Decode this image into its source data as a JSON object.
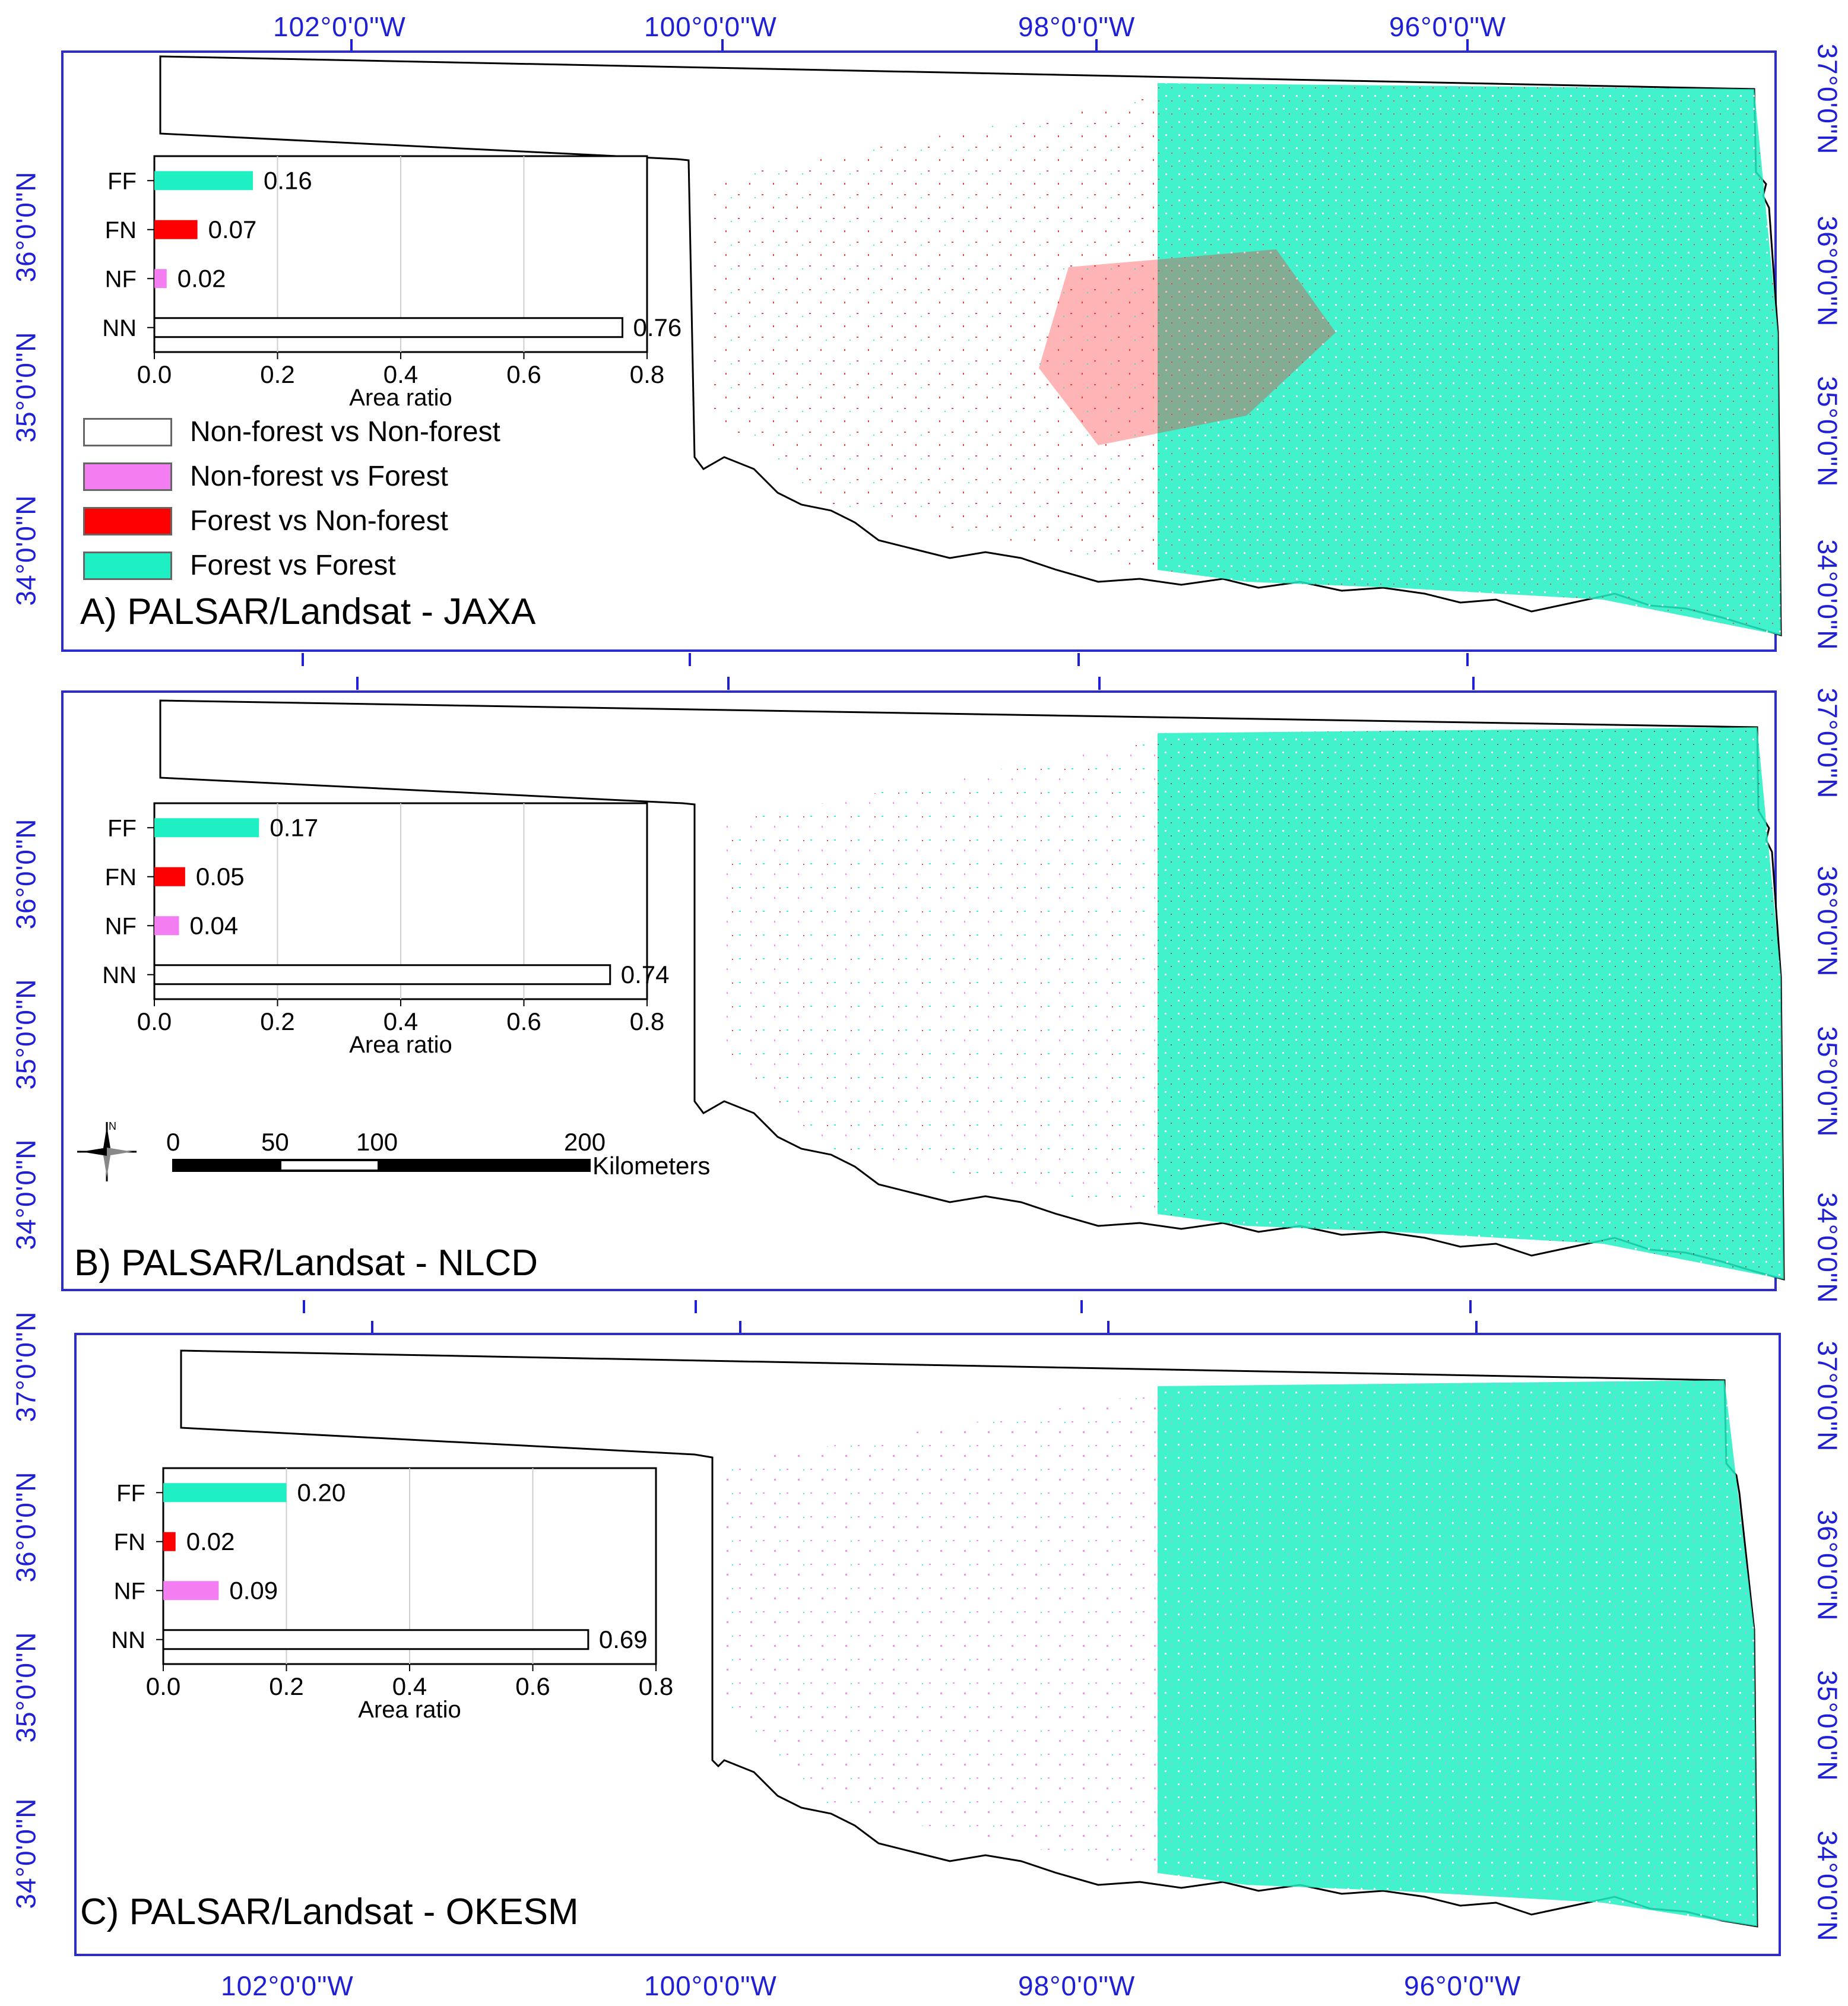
{
  "coords": {
    "top_longitudes": [
      "102°0'0\"W",
      "100°0'0\"W",
      "98°0'0\"W",
      "96°0'0\"W"
    ],
    "bottom_longitudes": [
      "102°0'0\"W",
      "100°0'0\"W",
      "98°0'0\"W",
      "96°0'0\"W"
    ],
    "left_latitudes_a": [
      "36°0'0\"N",
      "35°0'0\"N",
      "34°0'0\"N"
    ],
    "right_latitudes_a": [
      "37°0'0\"N",
      "36°0'0\"N",
      "35°0'0\"N",
      "34°0'0\"N"
    ],
    "left_latitudes_b": [
      "36°0'0\"N",
      "35°0'0\"N",
      "34°0'0\"N"
    ],
    "right_latitudes_b": [
      "37°0'0\"N",
      "36°0'0\"N",
      "35°0'0\"N",
      "34°0'0\"N"
    ],
    "left_latitudes_c": [
      "37°0'0\"N",
      "36°0'0\"N",
      "35°0'0\"N",
      "34°0'0\"N"
    ],
    "right_latitudes_c": [
      "37°0'0\"N",
      "36°0'0\"N",
      "35°0'0\"N",
      "34°0'0\"N"
    ]
  },
  "panels": [
    {
      "title": "A) PALSAR/Landsat - JAXA",
      "chart": {
        "categories": [
          "FF",
          "FN",
          "NF",
          "NN"
        ],
        "values": [
          0.16,
          0.07,
          0.02,
          0.76
        ],
        "labels": [
          "0.16",
          "0.07",
          "0.02",
          "0.76"
        ],
        "xticks": [
          "0.0",
          "0.2",
          "0.4",
          "0.6",
          "0.8"
        ],
        "xlabel": "Area ratio"
      }
    },
    {
      "title": "B) PALSAR/Landsat - NLCD",
      "chart": {
        "categories": [
          "FF",
          "FN",
          "NF",
          "NN"
        ],
        "values": [
          0.17,
          0.05,
          0.04,
          0.74
        ],
        "labels": [
          "0.17",
          "0.05",
          "0.04",
          "0.74"
        ],
        "xticks": [
          "0.0",
          "0.2",
          "0.4",
          "0.6",
          "0.8"
        ],
        "xlabel": "Area ratio"
      }
    },
    {
      "title": "C) PALSAR/Landsat - OKESM",
      "chart": {
        "categories": [
          "FF",
          "FN",
          "NF",
          "NN"
        ],
        "values": [
          0.2,
          0.02,
          0.09,
          0.69
        ],
        "labels": [
          "0.20",
          "0.02",
          "0.09",
          "0.69"
        ],
        "xticks": [
          "0.0",
          "0.2",
          "0.4",
          "0.6",
          "0.8"
        ],
        "xlabel": "Area ratio"
      }
    }
  ],
  "legend": [
    {
      "label": "Non-forest vs Non-forest",
      "color": "#ffffff"
    },
    {
      "label": "Non-forest vs Forest",
      "color": "#f27ef2"
    },
    {
      "label": "Forest vs Non-forest",
      "color": "#ff0000"
    },
    {
      "label": "Forest vs Forest",
      "color": "#1ff0c4"
    }
  ],
  "scalebar": {
    "ticks": [
      "0",
      "50",
      "100",
      "200"
    ],
    "unit": "Kilometers",
    "north": "N"
  },
  "colors": {
    "FF": "#1ff0c4",
    "FN": "#ff0000",
    "NF": "#f27ef2",
    "NN": "#ffffff",
    "frame": "#2b2bd0",
    "coord_text": "#1f1fd6"
  }
}
